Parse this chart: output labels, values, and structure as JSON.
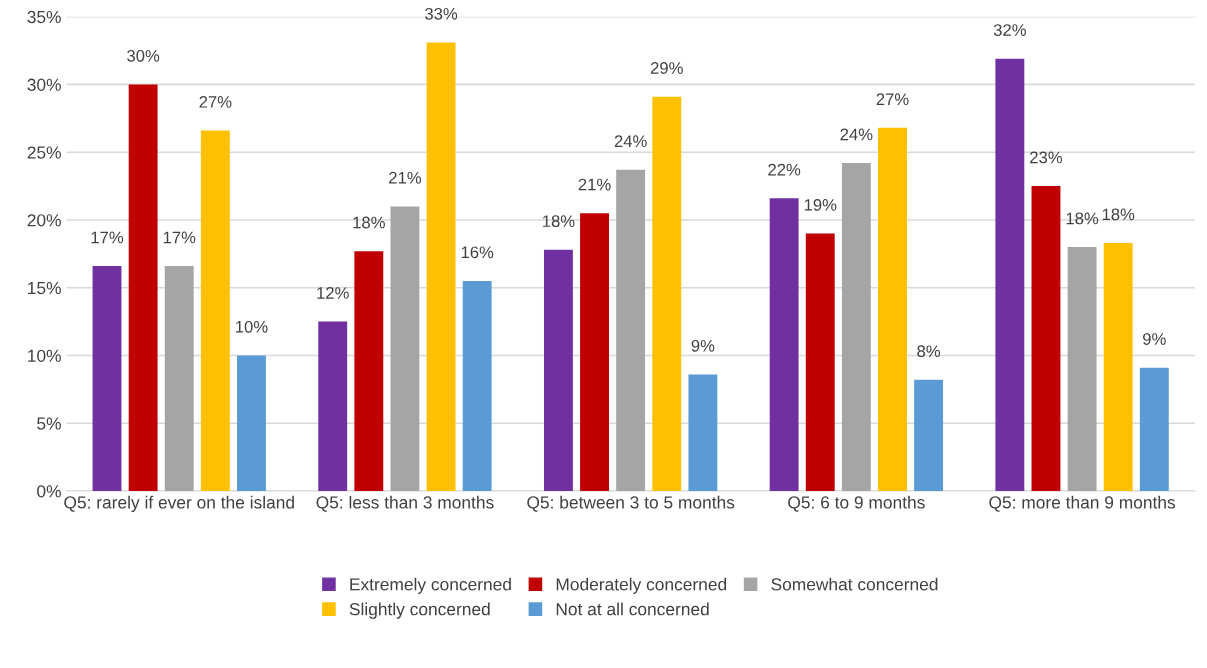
{
  "chart_data": {
    "type": "bar",
    "categories": [
      "Q5: rarely if ever on the island",
      "Q5: less than 3 months",
      "Q5: between 3 to 5 months",
      "Q5: 6 to 9 months",
      "Q5: more than 9 months"
    ],
    "series": [
      {
        "name": "Extremely concerned",
        "color": "#7030a0",
        "values": [
          16.6,
          12.5,
          17.8,
          21.6,
          31.9
        ],
        "value_labels": [
          "17%",
          "12%",
          "18%",
          "22%",
          "32%"
        ]
      },
      {
        "name": "Moderately concerned",
        "color": "#c00000",
        "values": [
          30.0,
          17.7,
          20.5,
          19.0,
          22.5
        ],
        "value_labels": [
          "30%",
          "18%",
          "21%",
          "19%",
          "23%"
        ]
      },
      {
        "name": "Somewhat concerned",
        "color": "#a5a5a5",
        "values": [
          16.6,
          21.0,
          23.7,
          24.2,
          18.0
        ],
        "value_labels": [
          "17%",
          "21%",
          "24%",
          "24%",
          "18%"
        ]
      },
      {
        "name": "Slightly concerned",
        "color": "#ffc000",
        "values": [
          26.6,
          33.1,
          29.1,
          26.8,
          18.3
        ],
        "value_labels": [
          "27%",
          "33%",
          "29%",
          "27%",
          "18%"
        ]
      },
      {
        "name": "Not at all concerned",
        "color": "#5b9bd5",
        "values": [
          10.0,
          15.5,
          8.6,
          8.2,
          9.1
        ],
        "value_labels": [
          "10%",
          "16%",
          "9%",
          "8%",
          "9%"
        ]
      }
    ],
    "ylim": [
      0,
      35
    ],
    "yticks": [
      {
        "value": 0,
        "label": "0%"
      },
      {
        "value": 5,
        "label": "5%"
      },
      {
        "value": 10,
        "label": "10%"
      },
      {
        "value": 15,
        "label": "15%"
      },
      {
        "value": 20,
        "label": "20%"
      },
      {
        "value": 25,
        "label": "25%"
      },
      {
        "value": 30,
        "label": "30%"
      },
      {
        "value": 35,
        "label": "35%"
      }
    ],
    "grid": "y",
    "legend": "bottom"
  }
}
